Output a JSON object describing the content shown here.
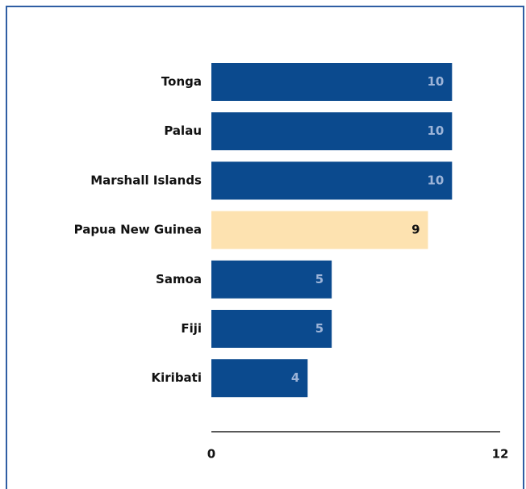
{
  "chart_data": {
    "type": "bar",
    "orientation": "horizontal",
    "categories": [
      "Tonga",
      "Palau",
      "Marshall Islands",
      "Papua New Guinea",
      "Samoa",
      "Fiji",
      "Kiribati"
    ],
    "values": [
      10,
      10,
      10,
      9,
      5,
      5,
      4
    ],
    "colors": [
      "#0b4a8e",
      "#0b4a8e",
      "#0b4a8e",
      "#fde2b0",
      "#0b4a8e",
      "#0b4a8e",
      "#0b4a8e"
    ],
    "xlim": [
      0,
      12
    ],
    "xticks": [
      0,
      12
    ],
    "grid": false
  }
}
